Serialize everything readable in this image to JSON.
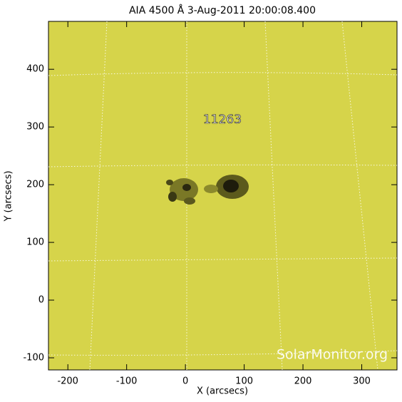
{
  "chart_data": {
    "type": "image",
    "title": "AIA 4500 Å  3-Aug-2011 20:00:08.400",
    "x_label": "X (arcsecs)",
    "y_label": "Y (arcsecs)",
    "xlim": [
      -233,
      360
    ],
    "ylim": [
      -121,
      483
    ],
    "xticks": [
      -200,
      -100,
      0,
      100,
      200,
      300
    ],
    "yticks": [
      -100,
      0,
      100,
      200,
      300,
      400
    ],
    "color": "#d6d44a",
    "annotation": "11263",
    "watermark": "SolarMonitor.org"
  }
}
